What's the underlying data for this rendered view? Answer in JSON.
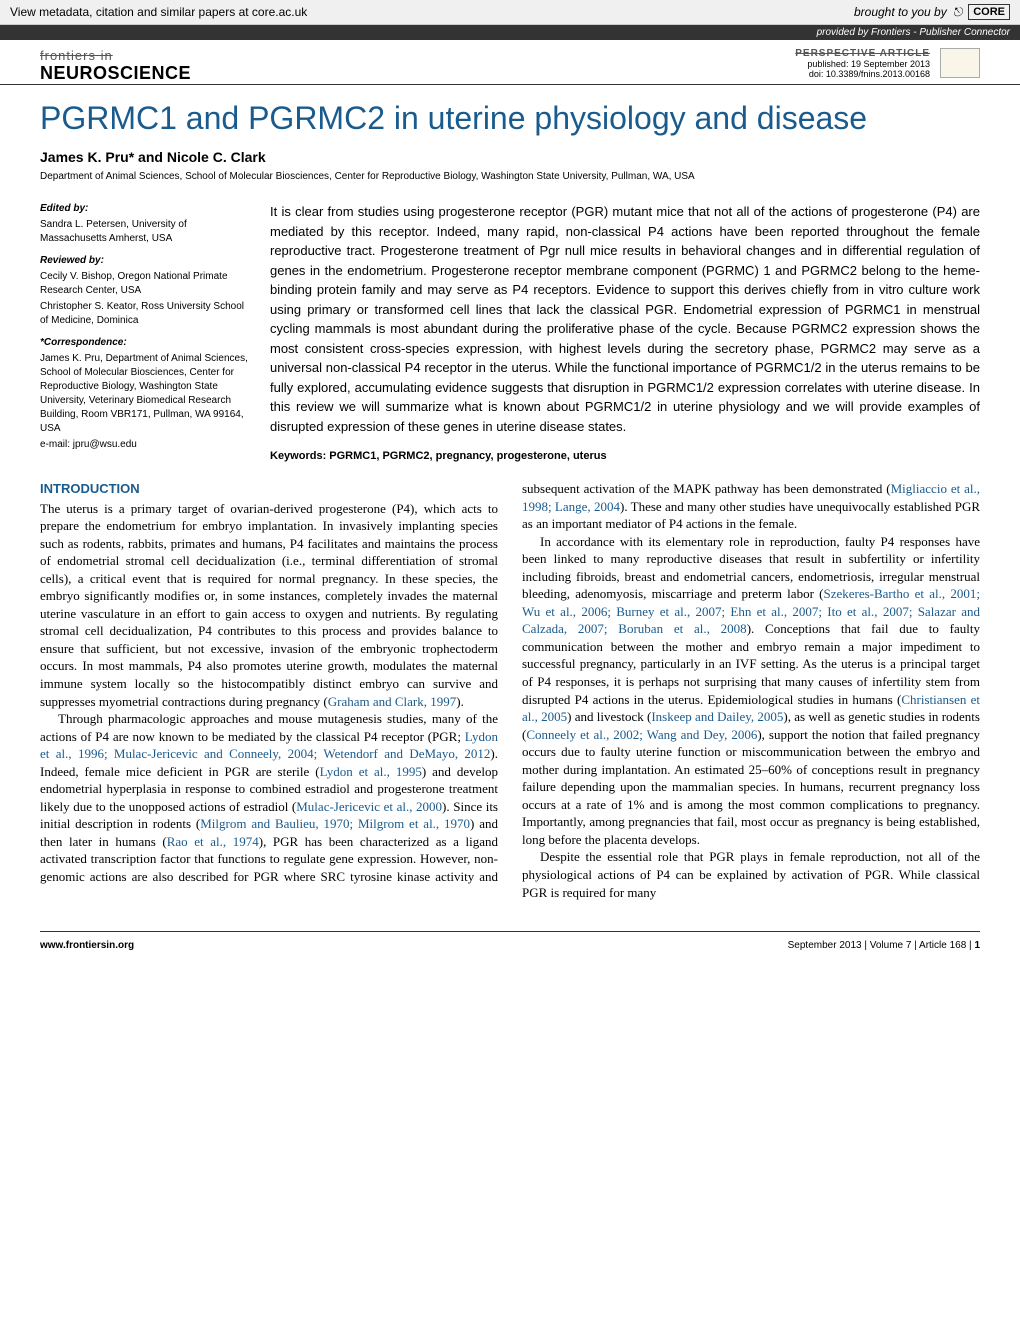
{
  "metadata_bar": {
    "text": "View metadata, citation and similar papers at core.ac.uk",
    "brought": "brought to you by",
    "core": "CORE"
  },
  "provided_bar": "provided by Frontiers - Publisher Connector",
  "header": {
    "journal_top": "frontiers in",
    "journal_name": "NEUROSCIENCE",
    "article_type": "PERSPECTIVE ARTICLE",
    "published": "published: 19 September 2013",
    "doi": "doi: 10.3389/fnins.2013.00168"
  },
  "title": "PGRMC1 and PGRMC2 in uterine physiology and disease",
  "authors": "James K. Pru* and Nicole C. Clark",
  "affiliation": "Department of Animal Sciences, School of Molecular Biosciences, Center for Reproductive Biology, Washington State University, Pullman, WA, USA",
  "sidebar": {
    "edited_heading": "Edited by:",
    "edited": "Sandra L. Petersen, University of Massachusetts Amherst, USA",
    "reviewed_heading": "Reviewed by:",
    "reviewed1": "Cecily V. Bishop, Oregon National Primate Research Center, USA",
    "reviewed2": "Christopher S. Keator, Ross University School of Medicine, Dominica",
    "corr_heading": "*Correspondence:",
    "corr": "James K. Pru, Department of Animal Sciences, School of Molecular Biosciences, Center for Reproductive Biology, Washington State University, Veterinary Biomedical Research Building, Room VBR171, Pullman, WA 99164, USA",
    "email": "e-mail: jpru@wsu.edu"
  },
  "abstract": "It is clear from studies using progesterone receptor (PGR) mutant mice that not all of the actions of progesterone (P4) are mediated by this receptor. Indeed, many rapid, non-classical P4 actions have been reported throughout the female reproductive tract. Progesterone treatment of Pgr null mice results in behavioral changes and in differential regulation of genes in the endometrium. Progesterone receptor membrane component (PGRMC) 1 and PGRMC2 belong to the heme-binding protein family and may serve as P4 receptors. Evidence to support this derives chiefly from in vitro culture work using primary or transformed cell lines that lack the classical PGR. Endometrial expression of PGRMC1 in menstrual cycling mammals is most abundant during the proliferative phase of the cycle. Because PGRMC2 expression shows the most consistent cross-species expression, with highest levels during the secretory phase, PGRMC2 may serve as a universal non-classical P4 receptor in the uterus. While the functional importance of PGRMC1/2 in the uterus remains to be fully explored, accumulating evidence suggests that disruption in PGRMC1/2 expression correlates with uterine disease. In this review we will summarize what is known about PGRMC1/2 in uterine physiology and we will provide examples of disrupted expression of these genes in uterine disease states.",
  "keywords": "Keywords: PGRMC1, PGRMC2, pregnancy, progesterone, uterus",
  "section_intro": "INTRODUCTION",
  "footer": {
    "left": "www.frontiersin.org",
    "right_date": "September 2013 | Volume 7 | Article 168 | ",
    "right_page": "1"
  },
  "colors": {
    "title_blue": "#1a5b8e",
    "ref_blue": "#1a5b8e"
  }
}
